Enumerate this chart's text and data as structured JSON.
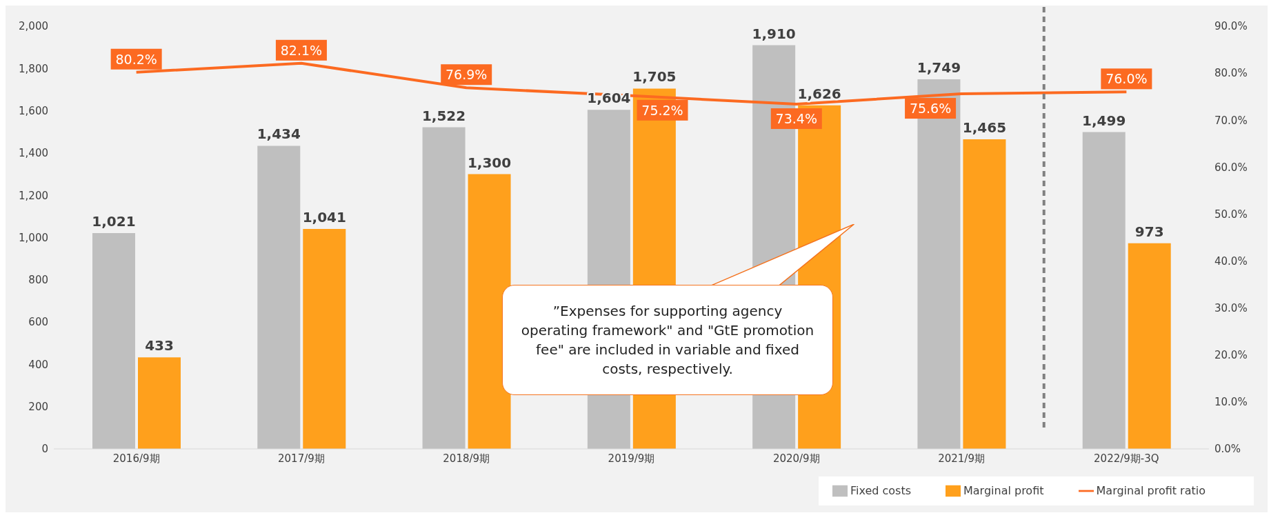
{
  "chart_data": {
    "type": "bar",
    "categories": [
      "2016/9期",
      "2017/9期",
      "2018/9期",
      "2019/9期",
      "2020/9期",
      "2021/9期",
      "2022/9期-3Q"
    ],
    "series": [
      {
        "name": "Fixed costs",
        "color": "#bfbfbf",
        "values": [
          1021,
          1434,
          1522,
          1604,
          1910,
          1749,
          1499
        ],
        "value_labels": [
          "1,021",
          "1,434",
          "1,522",
          "1,604",
          "1,910",
          "1,749",
          "1,499"
        ]
      },
      {
        "name": "Marginal profit",
        "color": "#ffa01c",
        "values": [
          433,
          1041,
          1300,
          1705,
          1626,
          1465,
          973
        ],
        "value_labels": [
          "433",
          "1,041",
          "1,300",
          "1,705",
          "1,626",
          "1,465",
          "973"
        ]
      },
      {
        "name": "Marginal profit ratio",
        "type": "line",
        "axis": "y2",
        "color": "#fc6a21",
        "marker": "none",
        "values": [
          80.2,
          82.1,
          76.9,
          75.2,
          73.4,
          75.6,
          76.0
        ],
        "value_labels": [
          "80.2%",
          "82.1%",
          "76.9%",
          "75.2%",
          "73.4%",
          "75.6%",
          "76.0%"
        ]
      }
    ],
    "ylim": [
      0,
      2000
    ],
    "yticks": [
      0,
      {
        "value": 200,
        "label": "200"
      },
      {
        "value": 400,
        "label": "400"
      },
      {
        "value": 600,
        "label": "600"
      },
      {
        "value": 800,
        "label": "800"
      },
      {
        "value": 1000,
        "label": "1,000"
      },
      {
        "value": 1200,
        "label": "1,200"
      },
      {
        "value": 1400,
        "label": "1,400"
      },
      {
        "value": 1600,
        "label": "1,600"
      },
      {
        "value": 1800,
        "label": "1,800"
      },
      {
        "value": 2000,
        "label": "2,000"
      }
    ],
    "y2lim": [
      0,
      90
    ],
    "y2ticks": [
      {
        "value": 0,
        "label": "0.0%"
      },
      {
        "value": 10,
        "label": "10.0%"
      },
      {
        "value": 20,
        "label": "20.0%"
      },
      {
        "value": 30,
        "label": "30.0%"
      },
      {
        "value": 40,
        "label": "40.0%"
      },
      {
        "value": 50,
        "label": "50.0%"
      },
      {
        "value": 60,
        "label": "60.0%"
      },
      {
        "value": 70,
        "label": "70.0%"
      },
      {
        "value": 80,
        "label": "80.0%"
      },
      {
        "value": 90,
        "label": "90.0%"
      }
    ],
    "annotations": [
      "”Expenses for supporting agency operating framework\" and \"GtE promotion fee\" are included in variable and fixed costs, respectively."
    ],
    "legend": "bottom right"
  }
}
